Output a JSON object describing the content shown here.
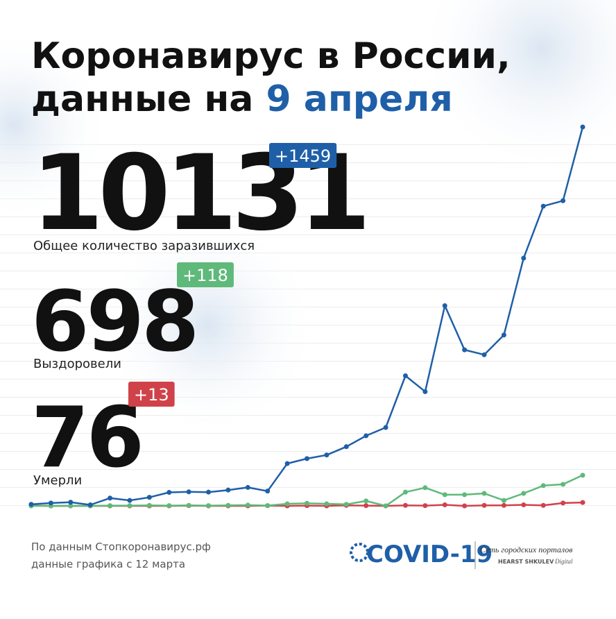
{
  "header": {
    "title_line1": "Коронавирус в России,",
    "title_line2": "данные на",
    "title_date": "9 апреля"
  },
  "stats": [
    {
      "value": 10131,
      "delta": "+1459",
      "label": "Общее количество заразившихся",
      "color": "#1f5fa8"
    },
    {
      "value": 698,
      "delta": "+118",
      "label": "Выздоровели",
      "color": "#5fb97a"
    },
    {
      "value": 76,
      "delta": "+13",
      "label": "Умерли",
      "color": "#d0424a"
    }
  ],
  "chart_data": {
    "type": "line",
    "series": [
      {
        "color": "#1f5fa8",
        "values": [
          6,
          11,
          14,
          4,
          30,
          21,
          33,
          52,
          54,
          53,
          61,
          71,
          57,
          163,
          182,
          196,
          228,
          270,
          302,
          501,
          440,
          771,
          601,
          582,
          658,
          954,
          1154,
          1175,
          1459
        ]
      },
      {
        "color": "#5fb97a",
        "values": [
          0,
          0,
          0,
          0,
          1,
          1,
          2,
          1,
          2,
          1,
          2,
          3,
          1,
          8,
          10,
          8,
          6,
          19,
          0,
          53,
          70,
          43,
          43,
          48,
          21,
          48,
          78,
          83,
          118
        ]
      },
      {
        "color": "#d0424a",
        "values": [
          1,
          0,
          0,
          0,
          0,
          0,
          0,
          0,
          1,
          0,
          0,
          0,
          1,
          0,
          1,
          0,
          2,
          1,
          0,
          2,
          1,
          4,
          0,
          2,
          2,
          4,
          2,
          11,
          13
        ]
      }
    ]
  },
  "footer": {
    "source": "По данным Стопкоронавирус.рф",
    "since": "данные графика с 12 марта",
    "logo": "COVID-19",
    "network": "Сеть городских порталов",
    "brand": "HEARST SHKULEV",
    "brand_suffix": "Digital"
  }
}
